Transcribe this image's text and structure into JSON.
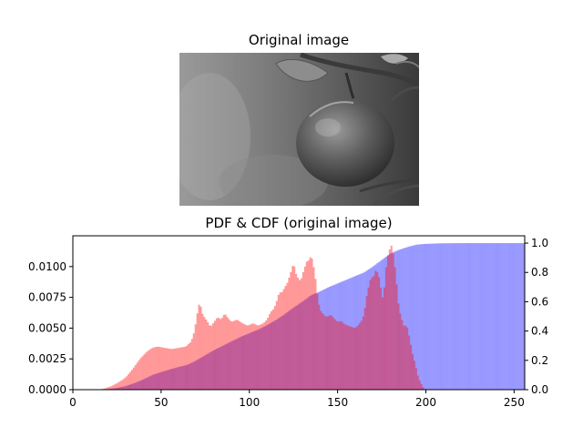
{
  "image_panel": {
    "title": "Original image",
    "description": "grayscale photo of an apple hanging from a branch"
  },
  "chart_data": {
    "type": "bar",
    "title": "PDF & CDF (original image)",
    "xlabel": "",
    "ylabel": "",
    "xlim": [
      0,
      256
    ],
    "ylim_left": [
      0,
      0.0125
    ],
    "ylim_right": [
      0,
      1.05
    ],
    "grid": false,
    "x_ticks": [
      0,
      50,
      100,
      150,
      200,
      250
    ],
    "y_left_ticks": [
      "0.0000",
      "0.0025",
      "0.0050",
      "0.0075",
      "0.0100"
    ],
    "y_right_ticks": [
      "0.0",
      "0.2",
      "0.4",
      "0.6",
      "0.8",
      "1.0"
    ],
    "series": [
      {
        "role": "pdf",
        "axis": "left",
        "color": "#ff0000",
        "alpha": 0.4,
        "anchors": [
          [
            15,
            0
          ],
          [
            18,
            0.0001
          ],
          [
            22,
            0.0003
          ],
          [
            26,
            0.0006
          ],
          [
            30,
            0.001
          ],
          [
            34,
            0.0017
          ],
          [
            38,
            0.0025
          ],
          [
            42,
            0.0031
          ],
          [
            45,
            0.0034
          ],
          [
            48,
            0.0035
          ],
          [
            52,
            0.0034
          ],
          [
            56,
            0.0033
          ],
          [
            60,
            0.0034
          ],
          [
            64,
            0.0035
          ],
          [
            67,
            0.0039
          ],
          [
            69,
            0.0048
          ],
          [
            70,
            0.0058
          ],
          [
            71,
            0.0066
          ],
          [
            72,
            0.0072
          ],
          [
            73,
            0.0063
          ],
          [
            74,
            0.006
          ],
          [
            76,
            0.0056
          ],
          [
            78,
            0.0051
          ],
          [
            80,
            0.0055
          ],
          [
            82,
            0.0059
          ],
          [
            84,
            0.0057
          ],
          [
            86,
            0.0062
          ],
          [
            88,
            0.0058
          ],
          [
            90,
            0.0055
          ],
          [
            93,
            0.0057
          ],
          [
            96,
            0.0054
          ],
          [
            99,
            0.0052
          ],
          [
            102,
            0.0054
          ],
          [
            105,
            0.0052
          ],
          [
            108,
            0.0054
          ],
          [
            110,
            0.0057
          ],
          [
            112,
            0.0063
          ],
          [
            114,
            0.0066
          ],
          [
            116,
            0.0074
          ],
          [
            117,
            0.008
          ],
          [
            118,
            0.0078
          ],
          [
            120,
            0.0083
          ],
          [
            122,
            0.0088
          ],
          [
            123,
            0.0094
          ],
          [
            124,
            0.0097
          ],
          [
            125,
            0.0104
          ],
          [
            126,
            0.0096
          ],
          [
            127,
            0.0092
          ],
          [
            128,
            0.009
          ],
          [
            129,
            0.0088
          ],
          [
            130,
            0.0093
          ],
          [
            131,
            0.0098
          ],
          [
            132,
            0.0102
          ],
          [
            133,
            0.0106
          ],
          [
            134,
            0.0104
          ],
          [
            135,
            0.0111
          ],
          [
            136,
            0.0102
          ],
          [
            137,
            0.0097
          ],
          [
            138,
            0.0083
          ],
          [
            139,
            0.0073
          ],
          [
            140,
            0.0065
          ],
          [
            142,
            0.0061
          ],
          [
            144,
            0.0059
          ],
          [
            146,
            0.0061
          ],
          [
            148,
            0.0058
          ],
          [
            150,
            0.0055
          ],
          [
            152,
            0.0056
          ],
          [
            154,
            0.0053
          ],
          [
            156,
            0.0052
          ],
          [
            158,
            0.0051
          ],
          [
            160,
            0.005
          ],
          [
            162,
            0.0053
          ],
          [
            164,
            0.0057
          ],
          [
            165,
            0.0062
          ],
          [
            166,
            0.0071
          ],
          [
            167,
            0.0081
          ],
          [
            168,
            0.0085
          ],
          [
            169,
            0.0093
          ],
          [
            170,
            0.0089
          ],
          [
            171,
            0.0096
          ],
          [
            172,
            0.0097
          ],
          [
            173,
            0.0094
          ],
          [
            174,
            0.0089
          ],
          [
            175,
            0.0077
          ],
          [
            176,
            0.0073
          ],
          [
            177,
            0.0093
          ],
          [
            178,
            0.0106
          ],
          [
            179,
            0.0112
          ],
          [
            180,
            0.0116
          ],
          [
            181,
            0.0118
          ],
          [
            182,
            0.0103
          ],
          [
            183,
            0.0096
          ],
          [
            184,
            0.0075
          ],
          [
            185,
            0.0065
          ],
          [
            186,
            0.0059
          ],
          [
            187,
            0.0054
          ],
          [
            188,
            0.005
          ],
          [
            189,
            0.0054
          ],
          [
            190,
            0.0047
          ],
          [
            191,
            0.0041
          ],
          [
            192,
            0.0032
          ],
          [
            193,
            0.0026
          ],
          [
            194,
            0.0021
          ],
          [
            195,
            0.0014
          ],
          [
            196,
            0.0009
          ],
          [
            197,
            0.0006
          ],
          [
            198,
            0.0003
          ],
          [
            199,
            0.0001
          ],
          [
            200,
            0
          ]
        ]
      },
      {
        "role": "cdf",
        "axis": "right",
        "color": "#0000ff",
        "alpha": 0.4,
        "anchors": [
          [
            0,
            0
          ],
          [
            15,
            0
          ],
          [
            20,
            0.004
          ],
          [
            25,
            0.012
          ],
          [
            30,
            0.025
          ],
          [
            35,
            0.045
          ],
          [
            40,
            0.07
          ],
          [
            45,
            0.1
          ],
          [
            50,
            0.12
          ],
          [
            55,
            0.138
          ],
          [
            60,
            0.155
          ],
          [
            65,
            0.17
          ],
          [
            70,
            0.2
          ],
          [
            75,
            0.235
          ],
          [
            80,
            0.27
          ],
          [
            85,
            0.3
          ],
          [
            90,
            0.33
          ],
          [
            95,
            0.36
          ],
          [
            100,
            0.385
          ],
          [
            105,
            0.41
          ],
          [
            110,
            0.44
          ],
          [
            115,
            0.475
          ],
          [
            120,
            0.515
          ],
          [
            125,
            0.56
          ],
          [
            130,
            0.6
          ],
          [
            135,
            0.645
          ],
          [
            140,
            0.67
          ],
          [
            145,
            0.7
          ],
          [
            150,
            0.725
          ],
          [
            155,
            0.75
          ],
          [
            160,
            0.775
          ],
          [
            165,
            0.8
          ],
          [
            170,
            0.84
          ],
          [
            175,
            0.885
          ],
          [
            180,
            0.93
          ],
          [
            185,
            0.955
          ],
          [
            190,
            0.975
          ],
          [
            195,
            0.99
          ],
          [
            200,
            0.995
          ],
          [
            210,
            0.999
          ],
          [
            220,
            1.0
          ],
          [
            256,
            1.0
          ]
        ]
      }
    ]
  }
}
